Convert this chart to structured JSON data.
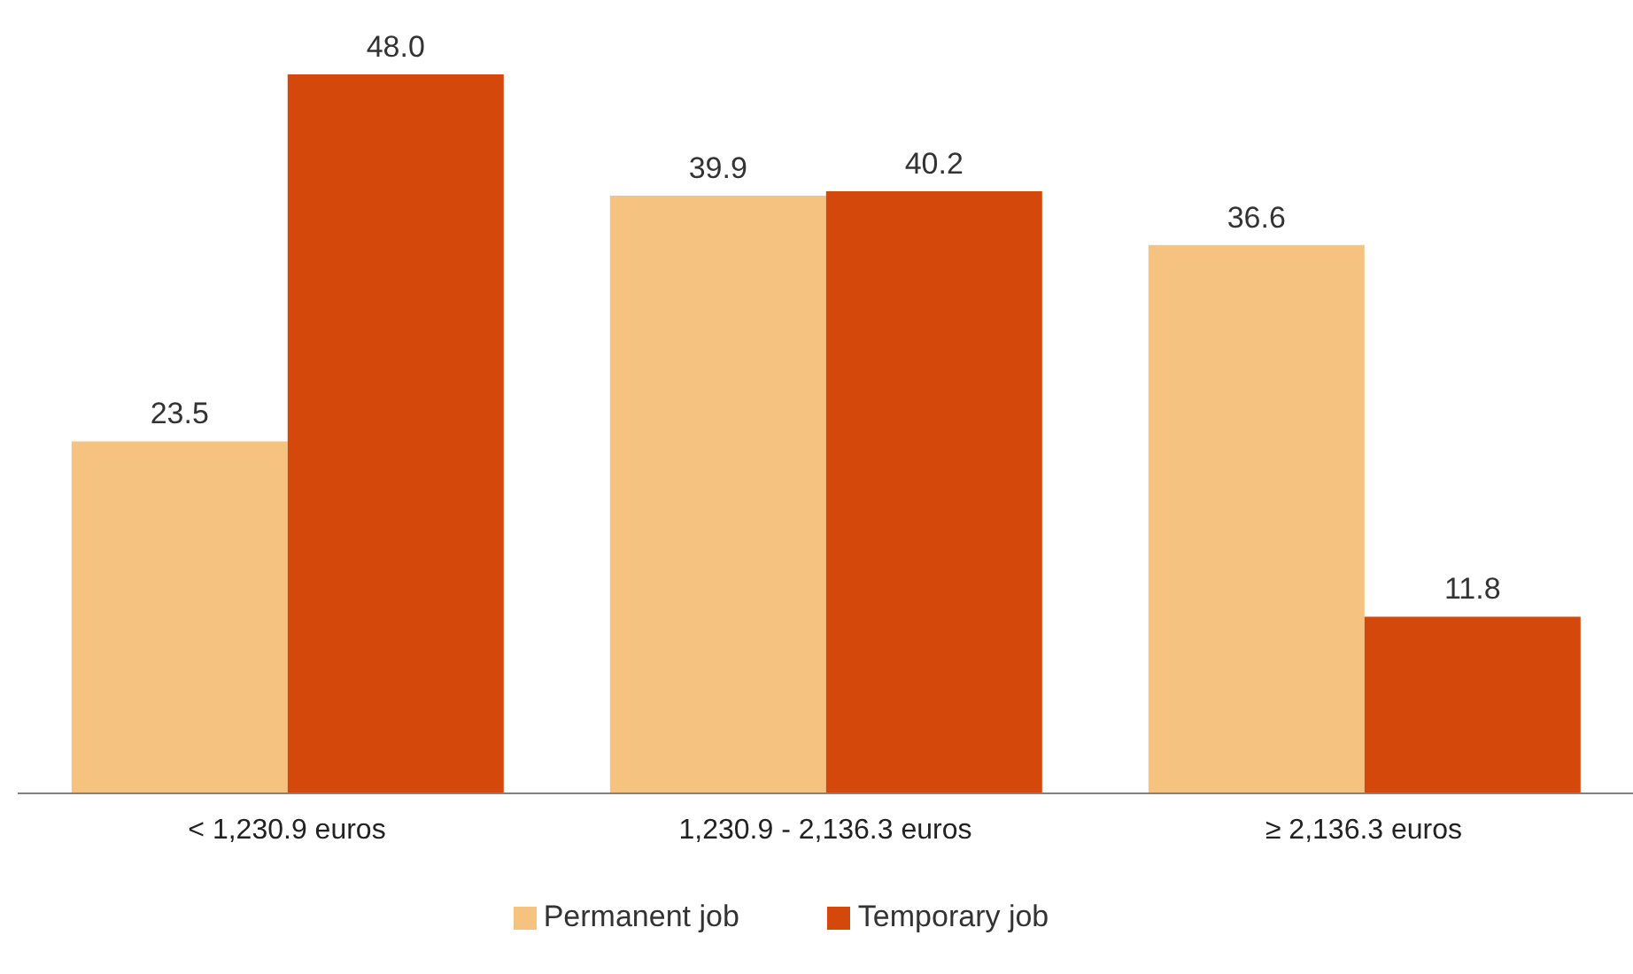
{
  "chart_data": {
    "type": "bar",
    "categories": [
      "< 1,230.9 euros",
      "1,230.9 - 2,136.3 euros",
      "≥ 2,136.3 euros"
    ],
    "series": [
      {
        "name": "Permanent job",
        "color": "#f5c27f",
        "values": [
          23.5,
          39.9,
          36.6
        ],
        "value_labels": [
          "23.5",
          "39.9",
          "36.6"
        ]
      },
      {
        "name": "Temporary job",
        "color": "#d4490b",
        "values": [
          48.0,
          40.2,
          11.8
        ],
        "value_labels": [
          "48.0",
          "40.2",
          "11.8"
        ]
      }
    ],
    "legend": "bottom",
    "grid": false
  }
}
